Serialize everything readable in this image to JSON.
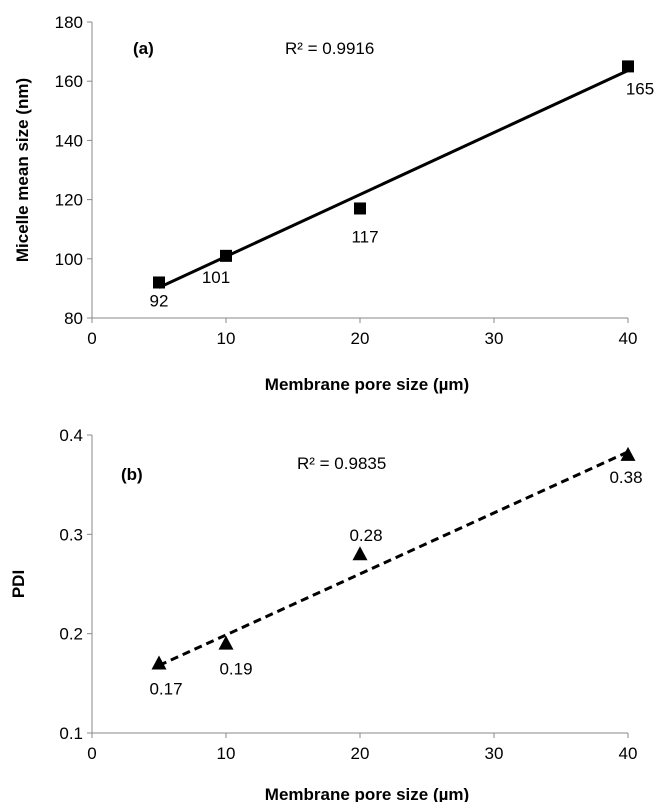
{
  "chart_data": [
    {
      "type": "scatter",
      "panel_label": "(a)",
      "annotation": "R² = 0.9916",
      "xlabel": "Membrane pore size (µm)",
      "ylabel": "Micelle mean size (nm)",
      "xlim": [
        0,
        40
      ],
      "ylim": [
        80,
        180
      ],
      "x_ticks": [
        0,
        10,
        20,
        30,
        40
      ],
      "y_ticks": [
        80,
        100,
        120,
        140,
        160,
        180
      ],
      "grid": false,
      "marker": "square",
      "trendline": {
        "style": "solid",
        "x": [
          5,
          40
        ],
        "y": [
          90.3,
          163.6
        ]
      },
      "points": [
        {
          "x": 5,
          "y": 92,
          "label": "92"
        },
        {
          "x": 10,
          "y": 101,
          "label": "101"
        },
        {
          "x": 20,
          "y": 117,
          "label": "117"
        },
        {
          "x": 40,
          "y": 165,
          "label": "165"
        }
      ]
    },
    {
      "type": "scatter",
      "panel_label": "(b)",
      "annotation": "R² = 0.9835",
      "xlabel": "Membrane pore size (µm)",
      "ylabel": "PDI",
      "xlim": [
        0,
        40
      ],
      "ylim": [
        0.1,
        0.4
      ],
      "x_ticks": [
        0,
        10,
        20,
        30,
        40
      ],
      "y_ticks": [
        0.1,
        0.2,
        0.3,
        0.4
      ],
      "grid": false,
      "marker": "triangle",
      "trendline": {
        "style": "dashed",
        "x": [
          5,
          40
        ],
        "y": [
          0.168,
          0.383
        ]
      },
      "points": [
        {
          "x": 5,
          "y": 0.17,
          "label": "0.17"
        },
        {
          "x": 10,
          "y": 0.19,
          "label": "0.19"
        },
        {
          "x": 20,
          "y": 0.28,
          "label": "0.28"
        },
        {
          "x": 40,
          "y": 0.38,
          "label": "0.38"
        }
      ]
    }
  ]
}
